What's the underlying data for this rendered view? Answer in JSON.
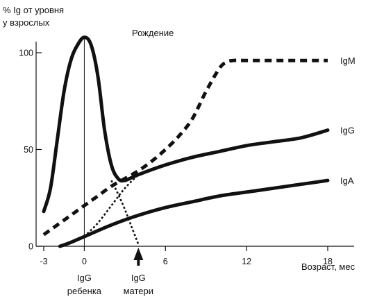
{
  "chart_data": {
    "type": "line",
    "ylabel_line1": "% Ig от уровня",
    "ylabel_line2": "у взрослых",
    "xlabel": "Возраст, мес",
    "birth_label": "Рождение",
    "bottom_label_child_1": "IgG",
    "bottom_label_child_2": "ребенка",
    "bottom_label_mother_1": "IgG",
    "bottom_label_mother_2": "матери",
    "xlim": [
      -3,
      18
    ],
    "ylim": [
      0,
      100
    ],
    "x_ticks": [
      {
        "value": -3,
        "label": "-3"
      },
      {
        "value": 0,
        "label": "0"
      },
      {
        "value": 6,
        "label": "6"
      },
      {
        "value": 12,
        "label": "12"
      },
      {
        "value": 18,
        "label": "18"
      }
    ],
    "y_ticks": [
      {
        "value": 0,
        "label": "0"
      },
      {
        "value": 50,
        "label": "50"
      },
      {
        "value": 100,
        "label": "100"
      }
    ],
    "birth_x": 0,
    "arrow_x": 4,
    "series": [
      {
        "name": "IgG",
        "style": "thick-solid",
        "x": [
          -3,
          -2.5,
          -2,
          -1.5,
          -1,
          -0.5,
          0,
          0.5,
          1,
          1.5,
          2,
          2.5,
          3,
          4,
          6,
          8,
          10,
          12,
          14,
          16,
          18
        ],
        "y": [
          18,
          30,
          55,
          80,
          96,
          104,
          108,
          104,
          88,
          60,
          42,
          35,
          34,
          37,
          42,
          46,
          49,
          52,
          54,
          56,
          60
        ]
      },
      {
        "name": "IgG ребенка",
        "style": "dotted",
        "x": [
          0,
          1,
          2,
          3,
          4
        ],
        "y": [
          5,
          12,
          21,
          30,
          37
        ]
      },
      {
        "name": "IgG матери",
        "style": "dotted",
        "x": [
          2,
          2.5,
          3,
          3.5,
          4
        ],
        "y": [
          34,
          27,
          19,
          10,
          1
        ]
      },
      {
        "name": "IgM",
        "style": "dashed",
        "x": [
          -3,
          -2,
          -1,
          0,
          1,
          2,
          3,
          4,
          5,
          6,
          7,
          8,
          9,
          10,
          10.5,
          11,
          12,
          14,
          16,
          18
        ],
        "y": [
          6,
          11,
          16,
          21,
          26,
          31,
          35,
          39,
          44,
          50,
          57,
          66,
          80,
          92,
          95,
          96,
          96,
          96,
          96,
          96
        ]
      },
      {
        "name": "IgA",
        "style": "thick-solid",
        "x": [
          -1.8,
          -1,
          0,
          2,
          4,
          6,
          8,
          10,
          12,
          14,
          16,
          18
        ],
        "y": [
          0,
          2,
          5,
          11,
          16,
          20,
          23,
          26,
          28,
          30,
          32,
          34
        ]
      }
    ]
  }
}
